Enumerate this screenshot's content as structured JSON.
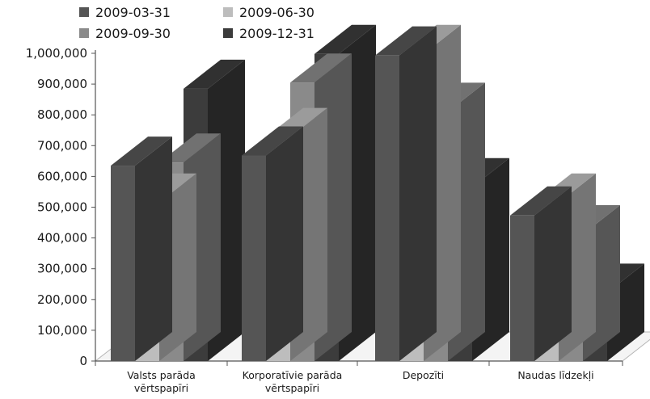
{
  "chart_data": {
    "type": "bar",
    "categories": [
      [
        "Valsts parāda",
        "vērtspapīri"
      ],
      [
        "Korporatīvie parāda",
        "vērtspapīri"
      ],
      [
        "Depozīti"
      ],
      [
        "Naudas līdzekļi"
      ]
    ],
    "series": [
      {
        "name": "2009-03-31",
        "color": "#555555",
        "values": [
          635000,
          668000,
          993000,
          473000
        ]
      },
      {
        "name": "2009-06-30",
        "color": "#bdbdbd",
        "values": [
          515000,
          728000,
          998000,
          515000
        ]
      },
      {
        "name": "2009-09-30",
        "color": "#8a8a8a",
        "values": [
          645000,
          905000,
          810000,
          412000
        ]
      },
      {
        "name": "2009-12-31",
        "color": "#3c3c3c",
        "values": [
          885000,
          998000,
          565000,
          222000
        ]
      }
    ],
    "ylim": [
      0,
      1000000
    ],
    "yticks": [
      "0",
      "100,000",
      "200,000",
      "300,000",
      "400,000",
      "500,000",
      "600,000",
      "700,000",
      "800,000",
      "900,000",
      "1,000,000"
    ],
    "legend_position": "top-left",
    "view": "3d",
    "title": "",
    "xlabel": "",
    "ylabel": ""
  }
}
